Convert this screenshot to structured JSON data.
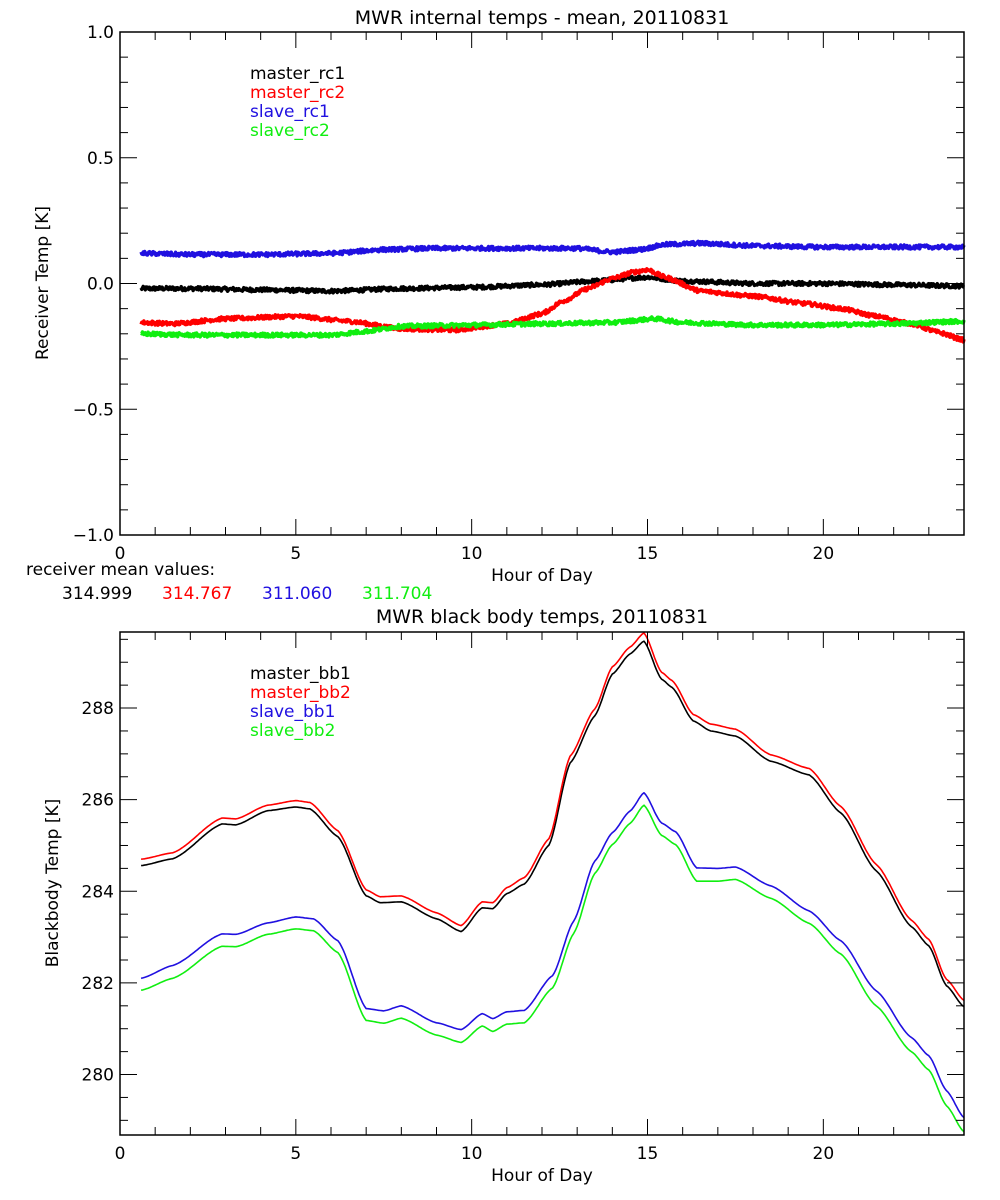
{
  "colors": {
    "black": "#000000",
    "red": "#ff0000",
    "blue": "#2010e0",
    "green": "#10ee10"
  },
  "receiver_means": {
    "label": "receiver mean values:",
    "values": [
      {
        "text": "314.999",
        "color": "#000000"
      },
      {
        "text": "314.767",
        "color": "#ff0000"
      },
      {
        "text": "311.060",
        "color": "#2010e0"
      },
      {
        "text": "311.704",
        "color": "#10ee10"
      }
    ]
  },
  "chart_data": [
    {
      "type": "line",
      "title": "MWR internal temps - mean, 20110831",
      "xlabel": "Hour of Day",
      "ylabel": "Receiver Temp [K]",
      "xlim": [
        0,
        24
      ],
      "ylim": [
        -1.0,
        1.0
      ],
      "xticks": [
        0,
        5,
        10,
        15,
        20
      ],
      "xtick_labels": [
        "0",
        "5",
        "10",
        "15",
        "20"
      ],
      "x_minor_step": 1,
      "yticks": [
        -1.0,
        -0.5,
        0.0,
        0.5,
        1.0
      ],
      "ytick_labels": [
        "-1.0",
        "-0.5",
        "0.0",
        "0.5",
        "1.0"
      ],
      "y_minor_step": 0.1,
      "grid": false,
      "legend_position": "top-left",
      "noise": 0.008,
      "series": [
        {
          "name": "master_rc1",
          "color": "#000000",
          "x": [
            0.6,
            2,
            4,
            6,
            8,
            10,
            12,
            13.5,
            15,
            16,
            18,
            20,
            22,
            24
          ],
          "y": [
            -0.02,
            -0.02,
            -0.025,
            -0.03,
            -0.02,
            -0.015,
            -0.005,
            0.01,
            0.025,
            0.01,
            0.0,
            0.0,
            -0.005,
            -0.01
          ]
        },
        {
          "name": "master_rc2",
          "color": "#ff0000",
          "x": [
            0.6,
            1.5,
            3,
            5,
            6.5,
            8,
            9.5,
            11,
            12,
            12.6,
            13.3,
            14,
            14.6,
            15,
            15.5,
            16.5,
            18,
            19.5,
            20.5,
            21.5,
            22.5,
            23.3,
            24
          ],
          "y": [
            -0.155,
            -0.16,
            -0.14,
            -0.13,
            -0.15,
            -0.18,
            -0.185,
            -0.16,
            -0.12,
            -0.07,
            -0.02,
            0.02,
            0.045,
            0.055,
            0.025,
            -0.03,
            -0.05,
            -0.08,
            -0.1,
            -0.13,
            -0.16,
            -0.195,
            -0.225
          ]
        },
        {
          "name": "slave_rc1",
          "color": "#2010e0",
          "x": [
            0.6,
            2,
            4,
            6,
            7.5,
            9,
            11,
            13,
            14,
            14.8,
            15.5,
            16.5,
            18,
            20,
            22,
            24
          ],
          "y": [
            0.12,
            0.115,
            0.115,
            0.12,
            0.135,
            0.14,
            0.14,
            0.14,
            0.125,
            0.135,
            0.155,
            0.16,
            0.15,
            0.145,
            0.145,
            0.145
          ]
        },
        {
          "name": "slave_rc2",
          "color": "#10ee10",
          "x": [
            0.6,
            2,
            4,
            6,
            7,
            8,
            10,
            12,
            14,
            15.2,
            16,
            18,
            20,
            22,
            24
          ],
          "y": [
            -0.2,
            -0.205,
            -0.205,
            -0.205,
            -0.19,
            -0.17,
            -0.165,
            -0.16,
            -0.155,
            -0.14,
            -0.155,
            -0.165,
            -0.165,
            -0.16,
            -0.15
          ]
        }
      ]
    },
    {
      "type": "line",
      "title": "MWR black body temps, 20110831",
      "xlabel": "Hour of Day",
      "ylabel": "Blackbody Temp [K]",
      "xlim": [
        0,
        24
      ],
      "ylim": [
        278.68,
        289.66
      ],
      "xticks": [
        0,
        5,
        10,
        15,
        20
      ],
      "xtick_labels": [
        "0",
        "5",
        "10",
        "15",
        "20"
      ],
      "x_minor_step": 1,
      "yticks": [
        280,
        282,
        284,
        286,
        288
      ],
      "ytick_labels": [
        "280",
        "282",
        "284",
        "286",
        "288"
      ],
      "y_minor_step": 0.5,
      "grid": false,
      "legend_position": "top-left",
      "noise": 0,
      "series": [
        {
          "name": "master_bb1",
          "color": "#000000",
          "x": [
            0.6,
            1.5,
            2.9,
            3.3,
            4.2,
            5.0,
            5.4,
            6.2,
            7.0,
            7.4,
            8.0,
            9.0,
            9.7,
            10.3,
            10.6,
            11.0,
            11.5,
            12.2,
            12.8,
            13.5,
            14.0,
            14.5,
            14.9,
            15.4,
            15.7,
            16.3,
            16.8,
            17.5,
            18.5,
            19.6,
            20.5,
            21.5,
            22.5,
            23.0,
            23.5,
            24.0
          ],
          "y": [
            284.56,
            284.71,
            285.47,
            285.45,
            285.76,
            285.84,
            285.8,
            285.19,
            283.9,
            283.75,
            283.77,
            283.4,
            283.12,
            283.64,
            283.62,
            283.95,
            284.16,
            285.01,
            286.8,
            287.83,
            288.74,
            289.18,
            289.46,
            288.63,
            288.45,
            287.72,
            287.5,
            287.39,
            286.84,
            286.54,
            285.71,
            284.45,
            283.23,
            282.81,
            281.94,
            281.48
          ]
        },
        {
          "name": "master_bb2",
          "color": "#ff0000",
          "x": [
            0.6,
            1.5,
            2.9,
            3.3,
            4.2,
            5.0,
            5.4,
            6.2,
            7.0,
            7.4,
            8.0,
            9.0,
            9.7,
            10.3,
            10.6,
            11.0,
            11.5,
            12.2,
            12.8,
            13.5,
            14.0,
            14.5,
            14.9,
            15.4,
            15.7,
            16.3,
            16.8,
            17.5,
            18.5,
            19.6,
            20.5,
            21.5,
            22.5,
            23.0,
            23.5,
            24.0
          ],
          "y": [
            284.7,
            284.84,
            285.6,
            285.58,
            285.88,
            285.98,
            285.94,
            285.32,
            284.03,
            283.88,
            283.9,
            283.53,
            283.25,
            283.77,
            283.75,
            284.08,
            284.3,
            285.15,
            286.95,
            287.98,
            288.9,
            289.33,
            289.64,
            288.78,
            288.6,
            287.86,
            287.65,
            287.54,
            286.98,
            286.68,
            285.85,
            284.59,
            283.37,
            282.95,
            282.08,
            281.62
          ]
        },
        {
          "name": "slave_bb1",
          "color": "#2010e0",
          "x": [
            0.6,
            1.5,
            2.9,
            3.3,
            4.2,
            5.0,
            5.5,
            6.2,
            7.0,
            7.5,
            8.0,
            9.0,
            9.7,
            10.3,
            10.6,
            11.0,
            11.5,
            12.3,
            12.9,
            13.5,
            14.0,
            14.5,
            14.9,
            15.4,
            15.8,
            16.4,
            17.0,
            17.5,
            18.5,
            19.6,
            20.5,
            21.5,
            22.5,
            23.0,
            23.5,
            24.0
          ],
          "y": [
            282.1,
            282.38,
            283.07,
            283.06,
            283.31,
            283.44,
            283.4,
            282.92,
            281.44,
            281.39,
            281.5,
            281.13,
            280.98,
            281.33,
            281.22,
            281.37,
            281.4,
            282.16,
            283.35,
            284.66,
            285.28,
            285.75,
            286.15,
            285.49,
            285.3,
            284.51,
            284.5,
            284.53,
            284.12,
            283.57,
            282.92,
            281.83,
            280.81,
            280.41,
            279.65,
            279.06
          ]
        },
        {
          "name": "slave_bb2",
          "color": "#10ee10",
          "x": [
            0.6,
            1.5,
            2.9,
            3.3,
            4.2,
            5.0,
            5.5,
            6.2,
            7.0,
            7.5,
            8.0,
            9.0,
            9.7,
            10.3,
            10.6,
            11.0,
            11.5,
            12.3,
            12.9,
            13.5,
            14.0,
            14.5,
            14.9,
            15.4,
            15.8,
            16.4,
            17.0,
            17.5,
            18.5,
            19.6,
            20.5,
            21.5,
            22.5,
            23.0,
            23.5,
            24.0
          ],
          "y": [
            281.84,
            282.1,
            282.8,
            282.79,
            283.06,
            283.18,
            283.14,
            282.66,
            281.18,
            281.12,
            281.23,
            280.86,
            280.7,
            281.06,
            280.94,
            281.1,
            281.13,
            281.89,
            283.08,
            284.39,
            285.02,
            285.48,
            285.88,
            285.22,
            285.02,
            284.22,
            284.22,
            284.26,
            283.85,
            283.3,
            282.63,
            281.5,
            280.5,
            280.1,
            279.32,
            278.75
          ]
        }
      ]
    }
  ]
}
